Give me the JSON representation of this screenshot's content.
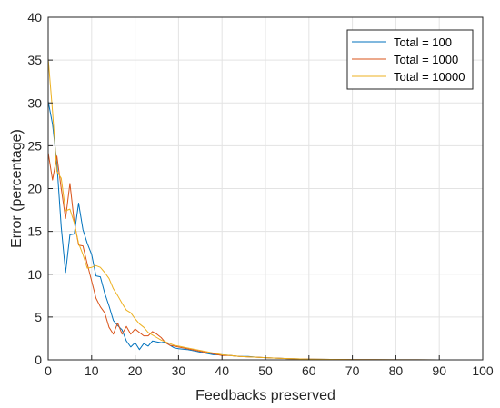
{
  "chart_data": {
    "type": "line",
    "title": "",
    "xlabel": "Feedbacks preserved",
    "ylabel": "Error (percentage)",
    "xlim": [
      0,
      100
    ],
    "ylim": [
      0,
      40
    ],
    "xticks": [
      0,
      10,
      20,
      30,
      40,
      50,
      60,
      70,
      80,
      90,
      100
    ],
    "yticks": [
      0,
      5,
      10,
      15,
      20,
      25,
      30,
      35,
      40
    ],
    "grid": true,
    "legend_position": "top-right",
    "series": [
      {
        "name": "Total = 100",
        "color": "#0072BD",
        "x": [
          0,
          1,
          2,
          3,
          4,
          5,
          6,
          7,
          8,
          9,
          10,
          11,
          12,
          13,
          14,
          15,
          16,
          17,
          18,
          19,
          20,
          21,
          22,
          23,
          24,
          25,
          26,
          27,
          28,
          29,
          30,
          32,
          34,
          36,
          38,
          40,
          42,
          44,
          46,
          48,
          50,
          55,
          60,
          65,
          70,
          75,
          80,
          85,
          90,
          95,
          100
        ],
        "y": [
          30.2,
          27.5,
          23.0,
          15.5,
          10.2,
          14.6,
          14.7,
          18.3,
          15.2,
          13.6,
          12.3,
          9.8,
          9.7,
          7.8,
          6.3,
          4.6,
          4.0,
          3.5,
          2.2,
          1.5,
          2.0,
          1.2,
          1.9,
          1.6,
          2.2,
          2.1,
          2.0,
          2.1,
          1.7,
          1.4,
          1.3,
          1.2,
          1.0,
          0.8,
          0.6,
          0.6,
          0.5,
          0.4,
          0.4,
          0.3,
          0.25,
          0.15,
          0.08,
          0.05,
          0.03,
          0.02,
          0.01,
          0.01,
          0,
          0,
          0
        ]
      },
      {
        "name": "Total = 1000",
        "color": "#D95319",
        "x": [
          0,
          1,
          2,
          3,
          4,
          5,
          6,
          7,
          8,
          9,
          10,
          11,
          12,
          13,
          14,
          15,
          16,
          17,
          18,
          19,
          20,
          21,
          22,
          23,
          24,
          25,
          26,
          27,
          28,
          29,
          30,
          32,
          34,
          36,
          38,
          40,
          42,
          44,
          46,
          48,
          50,
          55,
          60,
          65,
          70,
          75,
          80,
          85,
          90,
          95,
          100
        ],
        "y": [
          24.2,
          21.0,
          23.8,
          20.0,
          16.5,
          20.6,
          16.1,
          13.4,
          13.3,
          11.2,
          9.2,
          7.2,
          6.2,
          5.5,
          3.8,
          3.0,
          4.3,
          3.0,
          3.9,
          3.0,
          3.6,
          3.2,
          2.8,
          2.8,
          3.3,
          3.0,
          2.6,
          2.0,
          1.7,
          1.6,
          1.5,
          1.3,
          1.1,
          0.9,
          0.7,
          0.5,
          0.5,
          0.4,
          0.35,
          0.3,
          0.25,
          0.15,
          0.08,
          0.05,
          0.03,
          0.02,
          0.01,
          0.01,
          0,
          0,
          0
        ]
      },
      {
        "name": "Total = 10000",
        "color": "#EDB120",
        "x": [
          0,
          1,
          2,
          3,
          4,
          5,
          6,
          7,
          8,
          9,
          10,
          11,
          12,
          13,
          14,
          15,
          16,
          17,
          18,
          19,
          20,
          21,
          22,
          23,
          24,
          25,
          26,
          27,
          28,
          29,
          30,
          32,
          34,
          36,
          38,
          40,
          42,
          44,
          46,
          48,
          50,
          55,
          60,
          65,
          70,
          75,
          80,
          85,
          90,
          95,
          100
        ],
        "y": [
          35.2,
          29.0,
          22.0,
          21.2,
          17.4,
          17.6,
          16.0,
          13.6,
          12.3,
          10.7,
          10.8,
          11.0,
          10.8,
          10.2,
          9.5,
          8.3,
          7.5,
          6.6,
          5.8,
          5.5,
          4.8,
          4.2,
          3.8,
          3.2,
          2.9,
          2.6,
          2.3,
          2.1,
          1.9,
          1.7,
          1.6,
          1.4,
          1.2,
          1.0,
          0.8,
          0.6,
          0.5,
          0.4,
          0.35,
          0.3,
          0.25,
          0.15,
          0.08,
          0.05,
          0.03,
          0.02,
          0.01,
          0.01,
          0,
          0,
          0
        ]
      }
    ]
  }
}
